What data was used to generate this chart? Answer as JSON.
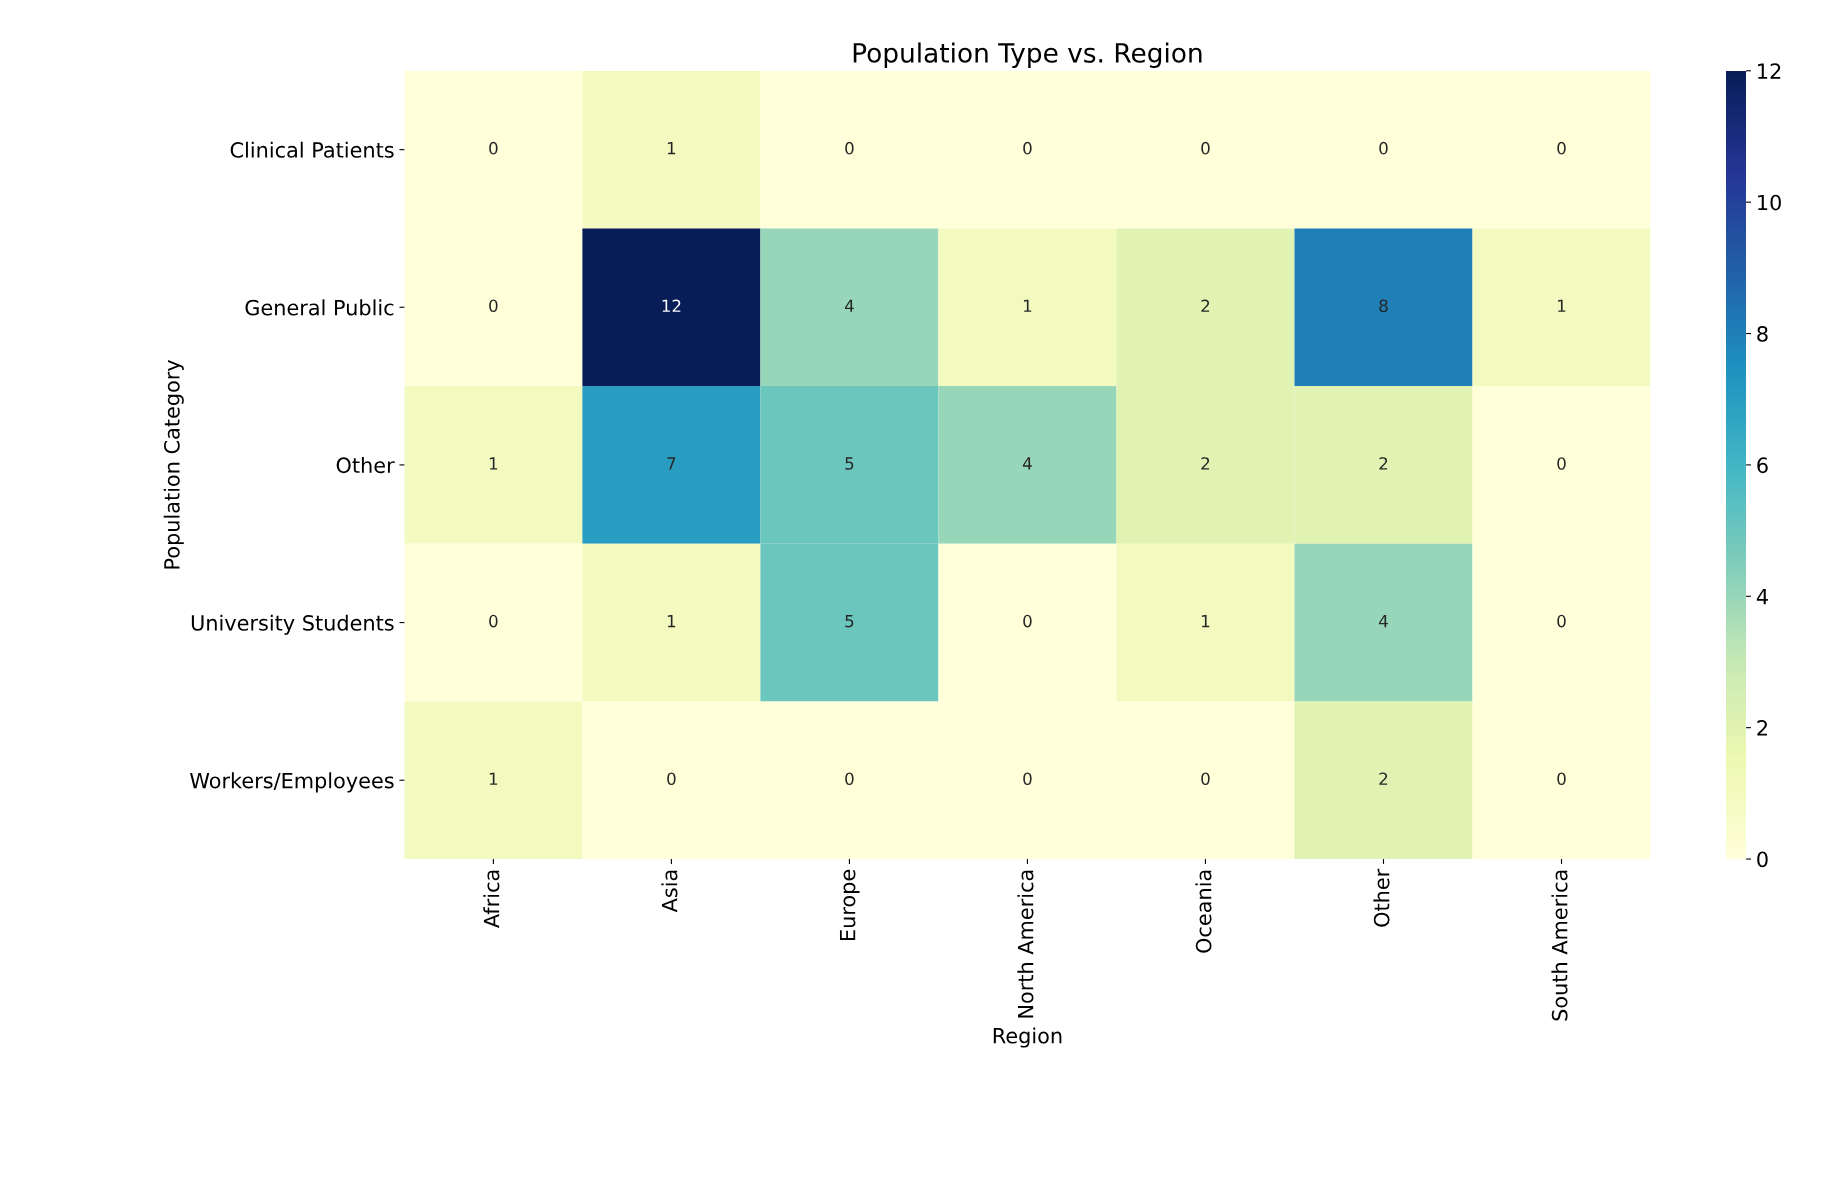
{
  "chart_data": {
    "type": "heatmap",
    "title": "Population Type vs. Region",
    "xlabel": "Region",
    "ylabel": "Population Category",
    "categories": [
      "Africa",
      "Asia",
      "Europe",
      "North America",
      "Oceania",
      "Other",
      "South America"
    ],
    "y_categories": [
      "Clinical Patients",
      "General Public",
      "Other",
      "University Students",
      "Workers/Employees"
    ],
    "cells": [
      [
        0,
        1,
        0,
        0,
        0,
        0,
        0
      ],
      [
        0,
        12,
        4,
        1,
        2,
        8,
        1
      ],
      [
        1,
        7,
        5,
        4,
        2,
        2,
        0
      ],
      [
        0,
        1,
        5,
        0,
        1,
        4,
        0
      ],
      [
        1,
        0,
        0,
        0,
        0,
        2,
        0
      ]
    ],
    "data_labels": true,
    "clim": [
      0,
      12
    ],
    "cticks": [
      0,
      2,
      4,
      6,
      8,
      10,
      12
    ]
  }
}
